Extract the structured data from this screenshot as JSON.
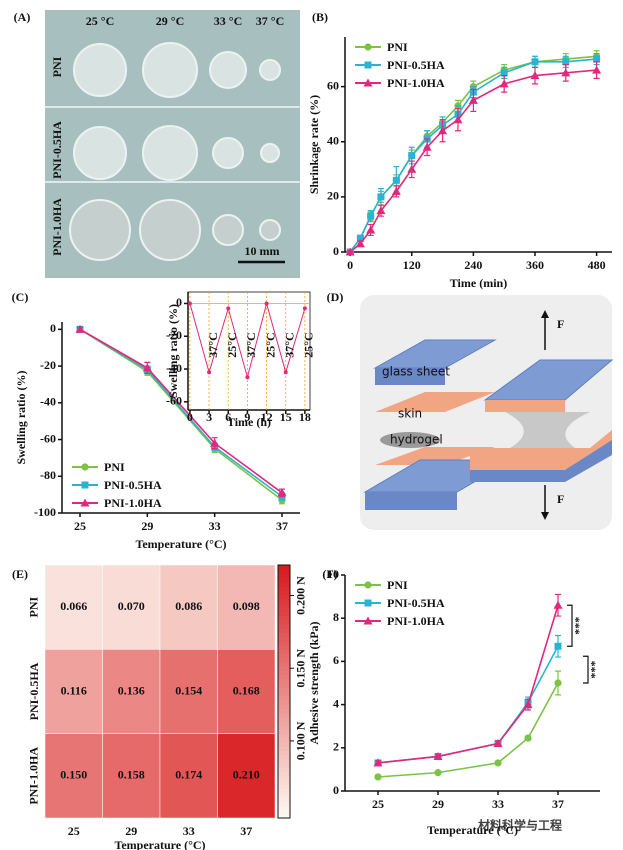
{
  "panel_a": {
    "label": "(A)",
    "columns": [
      "25 °C",
      "29 °C",
      "33 °C",
      "37 °C"
    ],
    "rows": [
      "PNI",
      "PNI-0.5HA",
      "PNI-1.0HA"
    ],
    "scale_bar": "10 mm"
  },
  "panel_d": {
    "label": "(D)",
    "labels": [
      "glass sheet",
      "skin",
      "hydrogel"
    ],
    "force_top": "F",
    "force_bottom": "F"
  },
  "watermark": "材料科学与工程",
  "chart_data": [
    {
      "type": "line",
      "label": "(B)",
      "ylabel": "Shrinkage rate (%)",
      "xlabel": "Time (min)",
      "x": [
        0,
        20,
        40,
        60,
        90,
        120,
        150,
        180,
        210,
        240,
        300,
        360,
        420,
        480
      ],
      "xlim": [
        -10,
        510
      ],
      "xticks": [
        0,
        120,
        240,
        360,
        480
      ],
      "ylim": [
        0,
        78
      ],
      "yticks": [
        0,
        20,
        40,
        60
      ],
      "legend": "upper left",
      "series": [
        {
          "name": "PNI",
          "color": "#7cc244",
          "marker": "circle",
          "values": [
            0,
            5,
            13,
            20,
            26,
            35,
            42,
            47,
            53,
            60,
            66,
            69,
            70,
            71
          ],
          "errors": [
            0.5,
            1,
            1.5,
            2,
            2,
            2,
            2,
            2,
            2,
            2,
            2,
            2,
            2,
            2
          ]
        },
        {
          "name": "PNI-0.5HA",
          "color": "#2bb3d3",
          "marker": "square",
          "values": [
            0,
            5,
            13,
            20,
            26,
            35,
            41,
            46,
            50,
            58,
            65,
            69,
            69,
            70
          ],
          "errors": [
            0.5,
            1,
            2,
            3,
            5,
            3,
            3,
            3,
            3,
            2,
            2,
            2,
            2,
            2
          ]
        },
        {
          "name": "PNI-1.0HA",
          "color": "#e2287c",
          "marker": "triangle",
          "values": [
            0,
            3,
            8,
            15,
            22,
            30,
            38,
            44,
            48,
            55,
            61,
            64,
            65,
            66
          ],
          "errors": [
            0.5,
            1,
            2,
            2,
            2,
            3,
            3,
            4,
            4,
            4,
            3,
            3,
            3,
            3
          ]
        }
      ]
    },
    {
      "type": "line",
      "label": "(C)",
      "ylabel": "Swelling ratio (%)",
      "xlabel": "Temperature (°C)",
      "categories": [
        "25",
        "29",
        "33",
        "37"
      ],
      "ylim": [
        -100,
        4
      ],
      "yticks": [
        0,
        -20,
        -40,
        -60,
        -80,
        -100
      ],
      "legend": "lower left",
      "series": [
        {
          "name": "PNI",
          "color": "#7cc244",
          "marker": "circle",
          "values": [
            0,
            -23,
            -65,
            -93
          ],
          "errors": [
            1,
            2,
            2,
            2
          ]
        },
        {
          "name": "PNI-0.5HA",
          "color": "#2bb3d3",
          "marker": "square",
          "values": [
            0,
            -22,
            -64,
            -91
          ],
          "errors": [
            1,
            2,
            2,
            2
          ]
        },
        {
          "name": "PNI-1.0HA",
          "color": "#e2287c",
          "marker": "triangle",
          "values": [
            0,
            -21,
            -62,
            -89
          ],
          "errors": [
            1,
            3,
            3,
            2
          ]
        }
      ],
      "inset": {
        "type": "line",
        "ylabel": "Swelling ratio (%)",
        "xlabel": "Time (h)",
        "x": [
          0,
          3,
          6,
          9,
          12,
          15,
          18
        ],
        "values": [
          0,
          -42,
          -3,
          -45,
          0,
          -42,
          -3
        ],
        "color": "#e2287c",
        "xlim": [
          -0.3,
          18.8
        ],
        "xticks": [
          0,
          3,
          6,
          9,
          12,
          15,
          18
        ],
        "xgrid": true,
        "ylim": [
          -65,
          7
        ],
        "yticks": [
          0,
          -20,
          -40,
          -60
        ],
        "hline": 0,
        "temp_labels": [
          "37°C",
          "25°C",
          "37°C",
          "25°C",
          "37°C",
          "25°C"
        ]
      }
    },
    {
      "type": "heatmap",
      "label": "(E)",
      "xlabel": "Temperature (°C)",
      "rows": [
        "PNI",
        "PNI-0.5HA",
        "PNI-1.0HA"
      ],
      "columns": [
        "25",
        "29",
        "33",
        "37"
      ],
      "values": [
        [
          0.066,
          0.07,
          0.086,
          0.098
        ],
        [
          0.116,
          0.136,
          0.154,
          0.168
        ],
        [
          0.15,
          0.158,
          0.174,
          0.21
        ]
      ],
      "value_labels": [
        [
          "0.066",
          "0.070",
          "0.086",
          "0.098"
        ],
        [
          "0.116",
          "0.136",
          "0.154",
          "0.168"
        ],
        [
          "0.150",
          "0.158",
          "0.174",
          "0.210"
        ]
      ],
      "zlim": [
        0.047,
        0.221
      ],
      "colormap": [
        "#fffaf2",
        "#d7191c"
      ],
      "zticks": [
        {
          "value": 0.1,
          "label": "0.100 N"
        },
        {
          "value": 0.15,
          "label": "0.150 N"
        },
        {
          "value": 0.2,
          "label": "0.200 N"
        }
      ]
    },
    {
      "type": "line",
      "label": "(F)",
      "ylabel": "Adhesive strength (kPa)",
      "xlabel": "Temperature (°C)",
      "x": [
        25,
        29,
        33,
        35,
        37
      ],
      "xlim": [
        22.8,
        39.8
      ],
      "xticks": [
        25,
        29,
        33,
        37
      ],
      "ylim": [
        0,
        10
      ],
      "yticks": [
        0,
        2,
        4,
        6,
        8,
        10
      ],
      "legend": "upper left",
      "series": [
        {
          "name": "PNI",
          "color": "#7cc244",
          "marker": "circle",
          "values": [
            0.65,
            0.85,
            1.3,
            2.45,
            5.0
          ],
          "errors": [
            0.05,
            0.05,
            0.08,
            0.1,
            0.55
          ]
        },
        {
          "name": "PNI-0.5HA",
          "color": "#2bb3d3",
          "marker": "square",
          "values": [
            1.3,
            1.6,
            2.2,
            4.1,
            6.7
          ],
          "errors": [
            0.1,
            0.1,
            0.12,
            0.25,
            0.5
          ]
        },
        {
          "name": "PNI-1.0HA",
          "color": "#e2287c",
          "marker": "triangle",
          "values": [
            1.3,
            1.6,
            2.2,
            4.0,
            8.6
          ],
          "errors": [
            0.1,
            0.1,
            0.12,
            0.25,
            0.5
          ]
        }
      ],
      "annotations": [
        "***",
        "***"
      ]
    }
  ]
}
